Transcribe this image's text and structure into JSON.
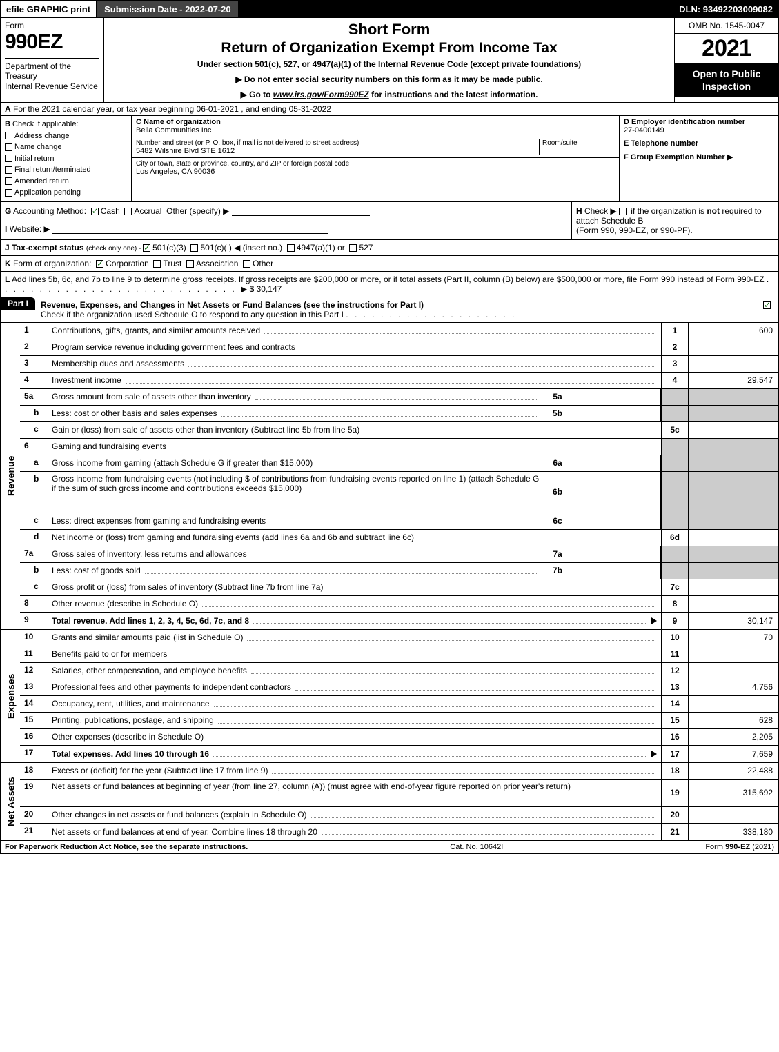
{
  "top_bar": {
    "efile": "efile GRAPHIC print",
    "submission": "Submission Date - 2022-07-20",
    "dln": "DLN: 93492203009082"
  },
  "header": {
    "form_word": "Form",
    "form_number": "990EZ",
    "dept": "Department of the Treasury\nInternal Revenue Service",
    "short_form": "Short Form",
    "main_title": "Return of Organization Exempt From Income Tax",
    "subtitle": "Under section 501(c), 527, or 4947(a)(1) of the Internal Revenue Code (except private foundations)",
    "note1_prefix": "▶ Do not enter social security numbers on this form as it may be made public.",
    "note2_prefix": "▶ Go to ",
    "note2_link": "www.irs.gov/Form990EZ",
    "note2_suffix": " for instructions and the latest information.",
    "omb": "OMB No. 1545-0047",
    "year": "2021",
    "open_to": "Open to Public Inspection"
  },
  "row_a": {
    "label": "A",
    "text": "For the 2021 calendar year, or tax year beginning 06-01-2021 , and ending 05-31-2022"
  },
  "section_b": {
    "label": "B",
    "check_if": "Check if applicable:",
    "items": [
      "Address change",
      "Name change",
      "Initial return",
      "Final return/terminated",
      "Amended return",
      "Application pending"
    ]
  },
  "section_c": {
    "c_label": "C Name of organization",
    "c_value": "Bella Communities Inc",
    "addr_label": "Number and street (or P. O. box, if mail is not delivered to street address)",
    "addr_value": "5482 Wilshire Blvd STE 1612",
    "room_label": "Room/suite",
    "city_label": "City or town, state or province, country, and ZIP or foreign postal code",
    "city_value": "Los Angeles, CA  90036"
  },
  "section_def": {
    "d_label": "D Employer identification number",
    "d_value": "27-0400149",
    "e_label": "E Telephone number",
    "e_value": "",
    "f_label": "F Group Exemption Number   ▶",
    "f_value": ""
  },
  "row_g": {
    "label": "G",
    "text": "Accounting Method:",
    "cash": "Cash",
    "accrual": "Accrual",
    "other": "Other (specify) ▶"
  },
  "row_h": {
    "label": "H",
    "text1": "Check ▶",
    "text2": "if the organization is ",
    "not": "not",
    "text3": " required to attach Schedule B",
    "text4": "(Form 990, 990-EZ, or 990-PF)."
  },
  "row_i": {
    "label": "I",
    "text": "Website: ▶"
  },
  "row_j": {
    "label": "J",
    "text": "Tax-exempt status",
    "sub": "(check only one) - ",
    "opt1": "501(c)(3)",
    "opt2": "501(c)(  ) ◀ (insert no.)",
    "opt3": "4947(a)(1) or",
    "opt4": "527"
  },
  "row_k": {
    "label": "K",
    "text": "Form of organization:",
    "opts": [
      "Corporation",
      "Trust",
      "Association",
      "Other"
    ]
  },
  "row_l": {
    "label": "L",
    "text": "Add lines 5b, 6c, and 7b to line 9 to determine gross receipts. If gross receipts are $200,000 or more, or if total assets (Part II, column (B) below) are $500,000 or more, file Form 990 instead of Form 990-EZ",
    "amount": "▶ $ 30,147"
  },
  "part1": {
    "tab": "Part I",
    "title": "Revenue, Expenses, and Changes in Net Assets or Fund Balances (see the instructions for Part I)",
    "check_line": "Check if the organization used Schedule O to respond to any question in this Part I"
  },
  "side_labels": {
    "revenue": "Revenue",
    "expenses": "Expenses",
    "net_assets": "Net Assets"
  },
  "lines": {
    "l1": {
      "n": "1",
      "desc": "Contributions, gifts, grants, and similar amounts received",
      "rn": "1",
      "rv": "600"
    },
    "l2": {
      "n": "2",
      "desc": "Program service revenue including government fees and contracts",
      "rn": "2",
      "rv": ""
    },
    "l3": {
      "n": "3",
      "desc": "Membership dues and assessments",
      "rn": "3",
      "rv": ""
    },
    "l4": {
      "n": "4",
      "desc": "Investment income",
      "rn": "4",
      "rv": "29,547"
    },
    "l5a": {
      "n": "5a",
      "desc": "Gross amount from sale of assets other than inventory",
      "mid": "5a",
      "mv": ""
    },
    "l5b": {
      "n": "b",
      "desc": "Less: cost or other basis and sales expenses",
      "mid": "5b",
      "mv": ""
    },
    "l5c": {
      "n": "c",
      "desc": "Gain or (loss) from sale of assets other than inventory (Subtract line 5b from line 5a)",
      "rn": "5c",
      "rv": ""
    },
    "l6": {
      "n": "6",
      "desc": "Gaming and fundraising events"
    },
    "l6a": {
      "n": "a",
      "desc": "Gross income from gaming (attach Schedule G if greater than $15,000)",
      "mid": "6a",
      "mv": ""
    },
    "l6b": {
      "n": "b",
      "desc": "Gross income from fundraising events (not including $                     of contributions from fundraising events reported on line 1) (attach Schedule G if the sum of such gross income and contributions exceeds $15,000)",
      "mid": "6b",
      "mv": ""
    },
    "l6c": {
      "n": "c",
      "desc": "Less: direct expenses from gaming and fundraising events",
      "mid": "6c",
      "mv": ""
    },
    "l6d": {
      "n": "d",
      "desc": "Net income or (loss) from gaming and fundraising events (add lines 6a and 6b and subtract line 6c)",
      "rn": "6d",
      "rv": ""
    },
    "l7a": {
      "n": "7a",
      "desc": "Gross sales of inventory, less returns and allowances",
      "mid": "7a",
      "mv": ""
    },
    "l7b": {
      "n": "b",
      "desc": "Less: cost of goods sold",
      "mid": "7b",
      "mv": ""
    },
    "l7c": {
      "n": "c",
      "desc": "Gross profit or (loss) from sales of inventory (Subtract line 7b from line 7a)",
      "rn": "7c",
      "rv": ""
    },
    "l8": {
      "n": "8",
      "desc": "Other revenue (describe in Schedule O)",
      "rn": "8",
      "rv": ""
    },
    "l9": {
      "n": "9",
      "desc": "Total revenue. Add lines 1, 2, 3, 4, 5c, 6d, 7c, and 8",
      "tri": true,
      "rn": "9",
      "rv": "30,147",
      "bold": true
    },
    "l10": {
      "n": "10",
      "desc": "Grants and similar amounts paid (list in Schedule O)",
      "rn": "10",
      "rv": "70"
    },
    "l11": {
      "n": "11",
      "desc": "Benefits paid to or for members",
      "rn": "11",
      "rv": ""
    },
    "l12": {
      "n": "12",
      "desc": "Salaries, other compensation, and employee benefits",
      "rn": "12",
      "rv": ""
    },
    "l13": {
      "n": "13",
      "desc": "Professional fees and other payments to independent contractors",
      "rn": "13",
      "rv": "4,756"
    },
    "l14": {
      "n": "14",
      "desc": "Occupancy, rent, utilities, and maintenance",
      "rn": "14",
      "rv": ""
    },
    "l15": {
      "n": "15",
      "desc": "Printing, publications, postage, and shipping",
      "rn": "15",
      "rv": "628"
    },
    "l16": {
      "n": "16",
      "desc": "Other expenses (describe in Schedule O)",
      "rn": "16",
      "rv": "2,205"
    },
    "l17": {
      "n": "17",
      "desc": "Total expenses. Add lines 10 through 16",
      "tri": true,
      "rn": "17",
      "rv": "7,659",
      "bold": true
    },
    "l18": {
      "n": "18",
      "desc": "Excess or (deficit) for the year (Subtract line 17 from line 9)",
      "rn": "18",
      "rv": "22,488"
    },
    "l19": {
      "n": "19",
      "desc": "Net assets or fund balances at beginning of year (from line 27, column (A)) (must agree with end-of-year figure reported on prior year's return)",
      "rn": "19",
      "rv": "315,692"
    },
    "l20": {
      "n": "20",
      "desc": "Other changes in net assets or fund balances (explain in Schedule O)",
      "rn": "20",
      "rv": ""
    },
    "l21": {
      "n": "21",
      "desc": "Net assets or fund balances at end of year. Combine lines 18 through 20",
      "rn": "21",
      "rv": "338,180"
    }
  },
  "footer": {
    "left": "For Paperwork Reduction Act Notice, see the separate instructions.",
    "center": "Cat. No. 10642I",
    "right": "Form 990-EZ (2021)"
  }
}
